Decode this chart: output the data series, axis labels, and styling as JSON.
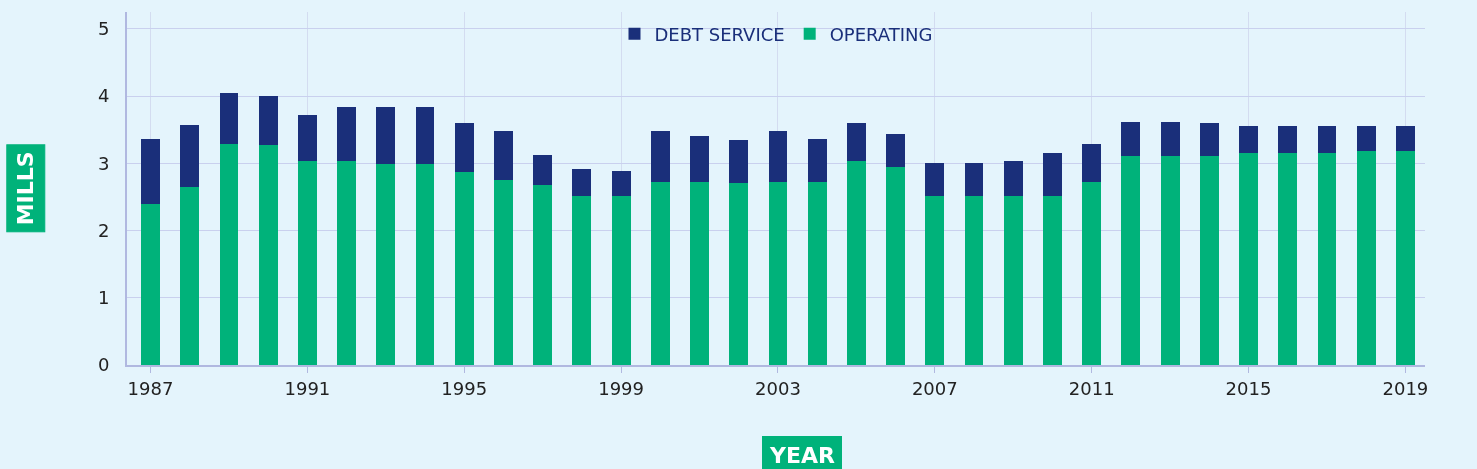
{
  "chart_data": {
    "type": "bar",
    "stacked": true,
    "xlabel": "YEAR",
    "ylabel": "MILLS",
    "x": [
      1987,
      1988,
      1989,
      1990,
      1991,
      1992,
      1993,
      1994,
      1995,
      1996,
      1997,
      1998,
      1999,
      2000,
      2001,
      2002,
      2003,
      2004,
      2005,
      2006,
      2007,
      2008,
      2009,
      2010,
      2011,
      2012,
      2013,
      2014,
      2015,
      2016,
      2017,
      2018,
      2019
    ],
    "series": [
      {
        "name": "OPERATING",
        "color": "#00b27a",
        "values": [
          2.39,
          2.65,
          3.29,
          3.27,
          3.03,
          3.03,
          2.99,
          2.99,
          2.87,
          2.75,
          2.68,
          2.51,
          2.51,
          2.72,
          2.72,
          2.71,
          2.72,
          2.72,
          3.03,
          2.95,
          2.51,
          2.51,
          2.51,
          2.51,
          2.72,
          3.11,
          3.11,
          3.11,
          3.15,
          3.15,
          3.15,
          3.18,
          3.18
        ]
      },
      {
        "name": "DEBT SERVICE",
        "color": "#1a2f7a",
        "values": [
          0.97,
          0.92,
          0.76,
          0.73,
          0.69,
          0.81,
          0.85,
          0.85,
          0.73,
          0.73,
          0.44,
          0.4,
          0.37,
          0.76,
          0.68,
          0.64,
          0.76,
          0.64,
          0.57,
          0.48,
          0.49,
          0.49,
          0.52,
          0.64,
          0.57,
          0.5,
          0.5,
          0.49,
          0.4,
          0.4,
          0.4,
          0.37,
          0.37
        ]
      }
    ],
    "xlim": [
      1986.4,
      2019.5
    ],
    "xticks": [
      1987,
      1991,
      1995,
      1999,
      2003,
      2007,
      2011,
      2015,
      2019
    ],
    "ylim": [
      0,
      5.25
    ],
    "yticks": [
      0,
      1,
      2,
      3,
      4,
      5
    ],
    "grid": true,
    "legend": "top"
  }
}
